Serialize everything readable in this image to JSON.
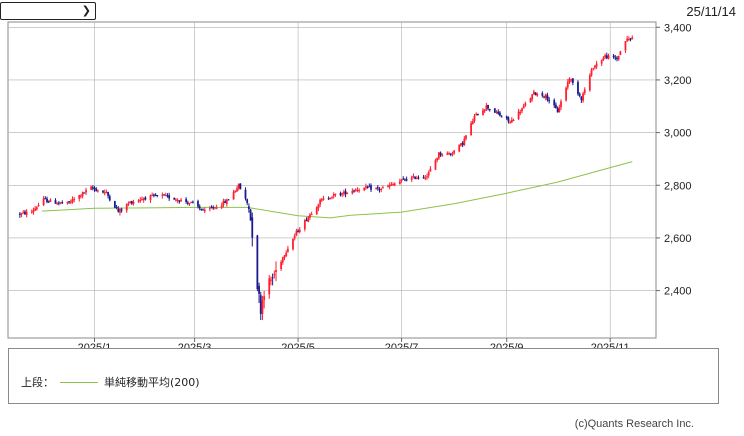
{
  "header": {
    "period_select": {
      "value": "",
      "icon": "chevron-down-icon"
    },
    "date": "25/11/14"
  },
  "legend": {
    "section_label": "上段：",
    "ma_label": "単純移動平均(200)",
    "ma_color": "#8bc34a"
  },
  "credit": "(c)Quants Research Inc.",
  "colors": {
    "up": "#ff2030",
    "down": "#1a1a8c",
    "ma": "#8bc34a",
    "grid": "#b0b0b0"
  },
  "chart_data": {
    "type": "candlestick",
    "yticks": [
      2400,
      2600,
      2800,
      3000,
      3200,
      3400
    ],
    "ytick_labels": [
      "2,400",
      "2,600",
      "2,800",
      "3,000",
      "3,200",
      "3,400"
    ],
    "ylim": [
      2220,
      3420
    ],
    "xlim": [
      "2024-11-11",
      "2025-11-28"
    ],
    "xticks": [
      "2025-01-01",
      "2025-03-01",
      "2025-05-01",
      "2025-07-01",
      "2025-09-01",
      "2025-11-01"
    ],
    "xtick_labels": [
      "2025/1",
      "2025/3",
      "2025/5",
      "2025/7",
      "2025/9",
      "2025/11"
    ],
    "price_path": [
      [
        "2024-11-18",
        2690
      ],
      [
        "2024-11-25",
        2700
      ],
      [
        "2024-12-02",
        2745
      ],
      [
        "2024-12-09",
        2735
      ],
      [
        "2024-12-16",
        2730
      ],
      [
        "2024-12-23",
        2760
      ],
      [
        "2024-12-30",
        2790
      ],
      [
        "2025-01-08",
        2770
      ],
      [
        "2025-01-15",
        2700
      ],
      [
        "2025-01-22",
        2735
      ],
      [
        "2025-02-01",
        2755
      ],
      [
        "2025-02-10",
        2760
      ],
      [
        "2025-02-20",
        2745
      ],
      [
        "2025-02-28",
        2730
      ],
      [
        "2025-03-07",
        2700
      ],
      [
        "2025-03-14",
        2720
      ],
      [
        "2025-03-20",
        2740
      ],
      [
        "2025-03-27",
        2800
      ],
      [
        "2025-04-02",
        2720
      ],
      [
        "2025-04-04",
        2620
      ],
      [
        "2025-04-07",
        2420
      ],
      [
        "2025-04-09",
        2330
      ],
      [
        "2025-04-11",
        2400
      ],
      [
        "2025-04-16",
        2450
      ],
      [
        "2025-04-23",
        2540
      ],
      [
        "2025-04-30",
        2620
      ],
      [
        "2025-05-07",
        2680
      ],
      [
        "2025-05-14",
        2740
      ],
      [
        "2025-05-21",
        2760
      ],
      [
        "2025-05-28",
        2770
      ],
      [
        "2025-06-04",
        2785
      ],
      [
        "2025-06-11",
        2790
      ],
      [
        "2025-06-18",
        2785
      ],
      [
        "2025-06-25",
        2800
      ],
      [
        "2025-07-02",
        2820
      ],
      [
        "2025-07-09",
        2830
      ],
      [
        "2025-07-16",
        2835
      ],
      [
        "2025-07-23",
        2920
      ],
      [
        "2025-07-30",
        2920
      ],
      [
        "2025-08-06",
        2960
      ],
      [
        "2025-08-13",
        3060
      ],
      [
        "2025-08-20",
        3100
      ],
      [
        "2025-08-27",
        3070
      ],
      [
        "2025-09-03",
        3040
      ],
      [
        "2025-09-10",
        3090
      ],
      [
        "2025-09-17",
        3150
      ],
      [
        "2025-09-24",
        3140
      ],
      [
        "2025-10-01",
        3080
      ],
      [
        "2025-10-08",
        3210
      ],
      [
        "2025-10-15",
        3130
      ],
      [
        "2025-10-22",
        3250
      ],
      [
        "2025-10-29",
        3290
      ],
      [
        "2025-11-05",
        3280
      ],
      [
        "2025-11-10",
        3350
      ],
      [
        "2025-11-14",
        3360
      ]
    ],
    "ma200": [
      [
        "2024-12-01",
        2702
      ],
      [
        "2025-01-01",
        2713
      ],
      [
        "2025-02-01",
        2714
      ],
      [
        "2025-03-01",
        2716
      ],
      [
        "2025-04-01",
        2716
      ],
      [
        "2025-05-01",
        2684
      ],
      [
        "2025-05-20",
        2676
      ],
      [
        "2025-06-01",
        2686
      ],
      [
        "2025-07-01",
        2698
      ],
      [
        "2025-08-01",
        2730
      ],
      [
        "2025-09-01",
        2770
      ],
      [
        "2025-10-01",
        2812
      ],
      [
        "2025-11-01",
        2867
      ],
      [
        "2025-11-14",
        2890
      ]
    ]
  }
}
